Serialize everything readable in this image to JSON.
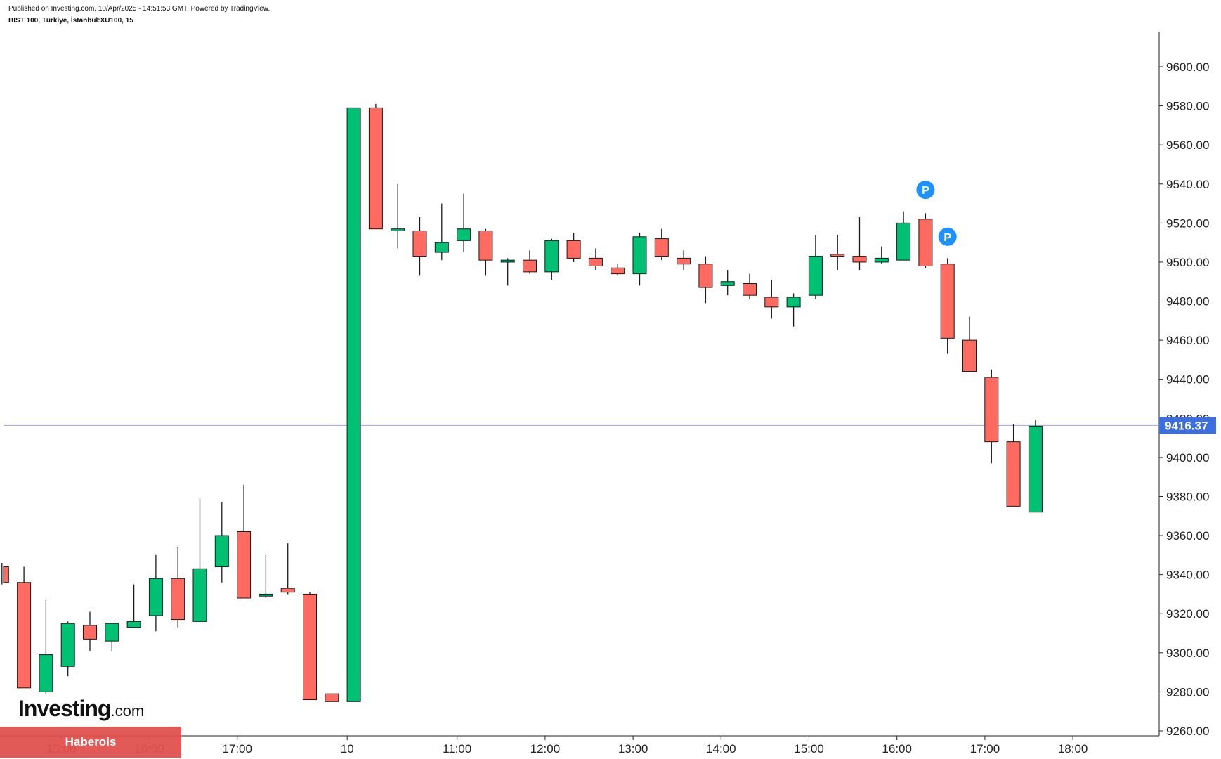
{
  "header": {
    "published": "Published on Investing.com, 10/Apr/2025 - 14:51:53 GMT, Powered by TradingView.",
    "symbol": "BIST 100, Türkiye, İstanbul:XU100, 15"
  },
  "branding": {
    "logo_main": "Investing",
    "logo_domain": ".com",
    "watermark": "Haberois"
  },
  "colors": {
    "up": "#00c073",
    "down": "#ff6b61",
    "wick": "#1a1a1a",
    "price_line": "#9ea4e6",
    "price_badge": "#3c6ee0",
    "marker": "#1e90ff"
  },
  "chart_data": {
    "type": "candlestick",
    "y_axis": {
      "min": 9260,
      "max": 9600,
      "ticks": [
        "9260.00",
        "9280.00",
        "9300.00",
        "9320.00",
        "9340.00",
        "9360.00",
        "9380.00",
        "9400.00",
        "9420.00",
        "9440.00",
        "9460.00",
        "9480.00",
        "9500.00",
        "9520.00",
        "9540.00",
        "9560.00",
        "9580.00",
        "9600.00"
      ],
      "side": "right"
    },
    "x_axis": {
      "labels": [
        {
          "label": "15:00",
          "slot": 2.7
        },
        {
          "label": "16:00",
          "slot": 6.7
        },
        {
          "label": "17:00",
          "slot": 10.7
        },
        {
          "label": "10",
          "slot": 15.7
        },
        {
          "label": "11:00",
          "slot": 20.7
        },
        {
          "label": "12:00",
          "slot": 24.7
        },
        {
          "label": "13:00",
          "slot": 28.7
        },
        {
          "label": "14:00",
          "slot": 32.7
        },
        {
          "label": "15:00",
          "slot": 36.7
        },
        {
          "label": "16:00",
          "slot": 40.7
        },
        {
          "label": "17:00",
          "slot": 44.7
        },
        {
          "label": "18:00",
          "slot": 48.7
        }
      ]
    },
    "current_price": 9416.37,
    "current_price_label": "9416.37",
    "candles": [
      {
        "o": 9344,
        "h": 9346,
        "l": 9335,
        "c": 9336
      },
      {
        "o": 9336,
        "h": 9344,
        "l": 9282,
        "c": 9282
      },
      {
        "o": 9280,
        "h": 9327,
        "l": 9279,
        "c": 9299
      },
      {
        "o": 9293,
        "h": 9316,
        "l": 9288,
        "c": 9315
      },
      {
        "o": 9314,
        "h": 9321,
        "l": 9301,
        "c": 9307
      },
      {
        "o": 9306,
        "h": 9315,
        "l": 9301,
        "c": 9315
      },
      {
        "o": 9313,
        "h": 9335,
        "l": 9313,
        "c": 9316
      },
      {
        "o": 9319,
        "h": 9350,
        "l": 9311,
        "c": 9338
      },
      {
        "o": 9338,
        "h": 9354,
        "l": 9313,
        "c": 9317
      },
      {
        "o": 9316,
        "h": 9379,
        "l": 9316,
        "c": 9343
      },
      {
        "o": 9344,
        "h": 9377,
        "l": 9336,
        "c": 9360
      },
      {
        "o": 9362,
        "h": 9386,
        "l": 9328,
        "c": 9328
      },
      {
        "o": 9329,
        "h": 9350,
        "l": 9328,
        "c": 9330
      },
      {
        "o": 9333,
        "h": 9356,
        "l": 9330,
        "c": 9331
      },
      {
        "o": 9330,
        "h": 9331,
        "l": 9276,
        "c": 9276
      },
      {
        "o": 9279,
        "h": 9279,
        "l": 9275,
        "c": 9275
      },
      {
        "o": 9275,
        "h": 9579,
        "l": 9275,
        "c": 9579
      },
      {
        "o": 9579,
        "h": 9581,
        "l": 9517,
        "c": 9517
      },
      {
        "o": 9516,
        "h": 9540,
        "l": 9507,
        "c": 9517
      },
      {
        "o": 9516,
        "h": 9523,
        "l": 9493,
        "c": 9503
      },
      {
        "o": 9505,
        "h": 9530,
        "l": 9501,
        "c": 9510
      },
      {
        "o": 9511,
        "h": 9535,
        "l": 9505,
        "c": 9517
      },
      {
        "o": 9516,
        "h": 9517,
        "l": 9493,
        "c": 9501
      },
      {
        "o": 9500,
        "h": 9502,
        "l": 9488,
        "c": 9501
      },
      {
        "o": 9501,
        "h": 9506,
        "l": 9494,
        "c": 9495
      },
      {
        "o": 9495,
        "h": 9512,
        "l": 9491,
        "c": 9511
      },
      {
        "o": 9511,
        "h": 9515,
        "l": 9500,
        "c": 9502
      },
      {
        "o": 9502,
        "h": 9507,
        "l": 9496,
        "c": 9498
      },
      {
        "o": 9497,
        "h": 9499,
        "l": 9493,
        "c": 9494
      },
      {
        "o": 9494,
        "h": 9515,
        "l": 9488,
        "c": 9513
      },
      {
        "o": 9512,
        "h": 9517,
        "l": 9501,
        "c": 9503
      },
      {
        "o": 9502,
        "h": 9506,
        "l": 9496,
        "c": 9499
      },
      {
        "o": 9499,
        "h": 9503,
        "l": 9479,
        "c": 9487
      },
      {
        "o": 9488,
        "h": 9496,
        "l": 9483,
        "c": 9490
      },
      {
        "o": 9489,
        "h": 9494,
        "l": 9481,
        "c": 9483
      },
      {
        "o": 9482,
        "h": 9491,
        "l": 9471,
        "c": 9477
      },
      {
        "o": 9477,
        "h": 9484,
        "l": 9467,
        "c": 9482
      },
      {
        "o": 9483,
        "h": 9514,
        "l": 9481,
        "c": 9503
      },
      {
        "o": 9504,
        "h": 9514,
        "l": 9496,
        "c": 9503
      },
      {
        "o": 9503,
        "h": 9523,
        "l": 9496,
        "c": 9500
      },
      {
        "o": 9500,
        "h": 9508,
        "l": 9499,
        "c": 9502
      },
      {
        "o": 9501,
        "h": 9526,
        "l": 9501,
        "c": 9520
      },
      {
        "o": 9522,
        "h": 9525,
        "l": 9497,
        "c": 9498
      },
      {
        "o": 9499,
        "h": 9502,
        "l": 9453,
        "c": 9461
      },
      {
        "o": 9460,
        "h": 9472,
        "l": 9444,
        "c": 9444
      },
      {
        "o": 9441,
        "h": 9445,
        "l": 9397,
        "c": 9408
      },
      {
        "o": 9408,
        "h": 9417,
        "l": 9375,
        "c": 9375
      },
      {
        "o": 9372,
        "h": 9419,
        "l": 9372,
        "c": 9416
      }
    ],
    "markers": [
      {
        "label": "P",
        "slot": 42,
        "value": 9537
      },
      {
        "label": "P",
        "slot": 43,
        "value": 9513
      }
    ]
  }
}
